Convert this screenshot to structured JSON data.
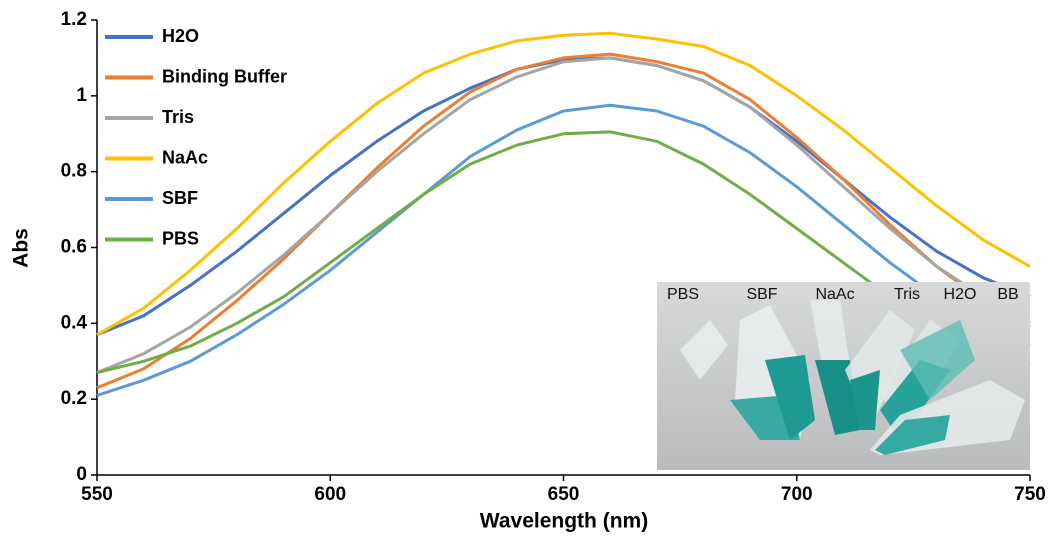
{
  "chart_data": {
    "type": "line",
    "x_label": "Wavelength (nm)",
    "y_label": "Abs",
    "x": [
      550,
      560,
      570,
      580,
      590,
      600,
      610,
      620,
      630,
      640,
      650,
      660,
      670,
      680,
      690,
      700,
      710,
      720,
      730,
      740,
      750
    ],
    "xlim": [
      550,
      750
    ],
    "xticks": [
      550,
      600,
      650,
      700,
      750
    ],
    "ylim": [
      0,
      1.2
    ],
    "yticks": [
      0,
      0.2,
      0.4,
      0.6,
      0.8,
      1,
      1.2
    ],
    "grid": false,
    "legend": "top-left",
    "series": [
      {
        "name": "H2O",
        "color": "#4472c4",
        "values": [
          0.37,
          0.42,
          0.5,
          0.59,
          0.69,
          0.79,
          0.88,
          0.96,
          1.02,
          1.07,
          1.095,
          1.1,
          1.08,
          1.04,
          0.97,
          0.88,
          0.78,
          0.68,
          0.59,
          0.52,
          0.47
        ]
      },
      {
        "name": "Binding Buffer",
        "color": "#ed7d31",
        "values": [
          0.23,
          0.28,
          0.36,
          0.46,
          0.57,
          0.69,
          0.81,
          0.92,
          1.01,
          1.07,
          1.1,
          1.11,
          1.09,
          1.06,
          0.99,
          0.89,
          0.78,
          0.66,
          0.55,
          0.46,
          0.39
        ]
      },
      {
        "name": "Tris",
        "color": "#a5a5a5",
        "values": [
          0.27,
          0.32,
          0.39,
          0.48,
          0.58,
          0.69,
          0.8,
          0.9,
          0.99,
          1.05,
          1.09,
          1.1,
          1.08,
          1.04,
          0.97,
          0.87,
          0.76,
          0.65,
          0.55,
          0.47,
          0.4
        ]
      },
      {
        "name": "NaAc",
        "color": "#ffc000",
        "values": [
          0.37,
          0.44,
          0.54,
          0.65,
          0.77,
          0.88,
          0.98,
          1.06,
          1.11,
          1.145,
          1.16,
          1.165,
          1.15,
          1.13,
          1.08,
          1.0,
          0.91,
          0.81,
          0.71,
          0.62,
          0.55
        ]
      },
      {
        "name": "SBF",
        "color": "#5b9bd5",
        "values": [
          0.21,
          0.25,
          0.3,
          0.37,
          0.45,
          0.54,
          0.64,
          0.74,
          0.84,
          0.91,
          0.96,
          0.975,
          0.96,
          0.92,
          0.85,
          0.76,
          0.66,
          0.56,
          0.47,
          0.4,
          0.34
        ]
      },
      {
        "name": "PBS",
        "color": "#70ad47",
        "values": [
          0.27,
          0.3,
          0.34,
          0.4,
          0.47,
          0.56,
          0.65,
          0.74,
          0.82,
          0.87,
          0.9,
          0.905,
          0.88,
          0.82,
          0.74,
          0.65,
          0.56,
          0.47,
          0.4,
          0.34,
          0.29
        ]
      }
    ]
  },
  "inset": {
    "labels": [
      "PBS",
      "SBF",
      "NaAc",
      "Tris",
      "H2O",
      "BB"
    ]
  }
}
